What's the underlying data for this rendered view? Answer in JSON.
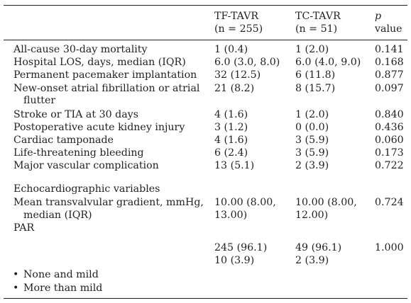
{
  "header": {
    "col1": "TF-TAVR",
    "col1_n": "(n = 255)",
    "col2": "TC-TAVR",
    "col2_n": "(n = 51)",
    "col3_p": "p",
    "col3_value": "value"
  },
  "rows": [
    {
      "label": "All-cause 30-day mortality",
      "tf": "1 (0.4)",
      "tc": "1 (2.0)",
      "p": "0.141"
    },
    {
      "label": "Hospital LOS, days, median (IQR)",
      "tf": "6.0 (3.0, 8.0)",
      "tc": "6.0 (4.0, 9.0)",
      "p": "0.168"
    },
    {
      "label": "Permanent pacemaker implantation",
      "tf": "32 (12.5)",
      "tc": "6 (11.8)",
      "p": "0.877"
    },
    {
      "label": "New-onset atrial fibrillation or atrial",
      "label_cont": "flutter",
      "tf": "21 (8.2)",
      "tc": "8 (15.7)",
      "p": "0.097"
    },
    {
      "label": "Stroke or TIA at 30 days",
      "tf": "4 (1.6)",
      "tc": "1 (2.0)",
      "p": "0.840"
    },
    {
      "label": "Postoperative acute kidney injury",
      "tf": "3 (1.2)",
      "tc": "0 (0.0)",
      "p": "0.436"
    },
    {
      "label": "Cardiac tamponade",
      "tf": "4 (1.6)",
      "tc": "3 (5.9)",
      "p": "0.060"
    },
    {
      "label": "Life-threatening bleeding",
      "tf": "6 (2.4)",
      "tc": "3 (5.9)",
      "p": "0.173"
    },
    {
      "label": "Major vascular complication",
      "tf": "13 (5.1)",
      "tc": "2 (3.9)",
      "p": "0.722"
    }
  ],
  "echo": {
    "section_label": "Echocardiographic variables",
    "gradient_label": "Mean transvalvular gradient, mmHg,",
    "gradient_label_cont": "median (IQR)",
    "gradient_tf": "10.00 (8.00,",
    "gradient_tf_cont": "13.00)",
    "gradient_tc": "10.00 (8.00,",
    "gradient_tc_cont": "12.00)",
    "gradient_p": "0.724",
    "par_label": "PAR",
    "par_tf_1": "245 (96.1)",
    "par_tc_1": "49 (96.1)",
    "par_p": "1.000",
    "par_tf_2": "10 (3.9)",
    "par_tc_2": "2 (3.9)",
    "bullet_1": "None and mild",
    "bullet_2": "More than mild"
  }
}
